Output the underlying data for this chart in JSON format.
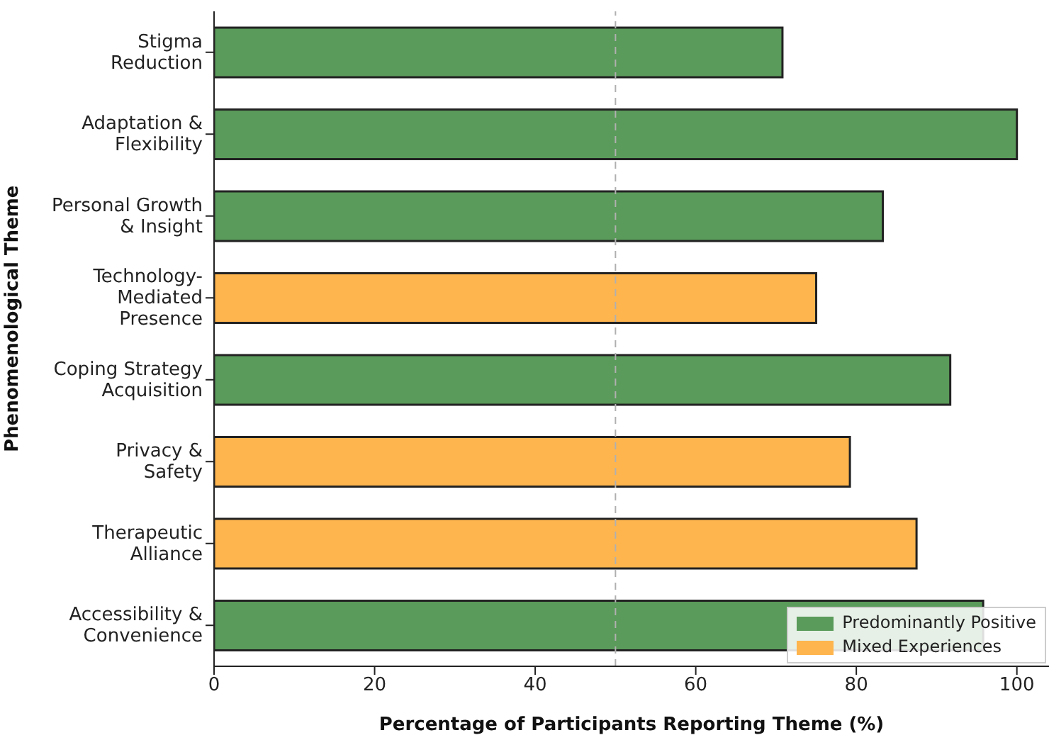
{
  "chart_data": {
    "type": "bar",
    "orientation": "horizontal",
    "stacked": true,
    "xlabel": "Percentage of Participants Reporting Theme (%)",
    "ylabel": "Phenomenological Theme",
    "categories": [
      "Stigma\nReduction",
      "Adaptation &\nFlexibility",
      "Personal Growth\n& Insight",
      "Technology-\nMediated\nPresence",
      "Coping Strategy\nAcquisition",
      "Privacy &\nSafety",
      "Therapeutic\nAlliance",
      "Accessibility &\nConvenience"
    ],
    "series": [
      {
        "name": "Predominantly Positive",
        "color": "#5a9a5a",
        "values": [
          70.8,
          100,
          83.3,
          null,
          91.7,
          null,
          null,
          95.8
        ]
      },
      {
        "name": "Mixed Experiences",
        "color": "#ffb54d",
        "values": [
          null,
          null,
          null,
          75,
          null,
          79.2,
          87.5,
          null
        ]
      }
    ],
    "xlim": [
      0,
      104
    ],
    "xticks": [
      0,
      20,
      40,
      60,
      80,
      100
    ],
    "ref_lines": [
      {
        "axis": "x",
        "value": 50,
        "color": "#b0b0b0",
        "line_style": "dashed"
      }
    ],
    "legend": "bottom right",
    "grid": false
  }
}
